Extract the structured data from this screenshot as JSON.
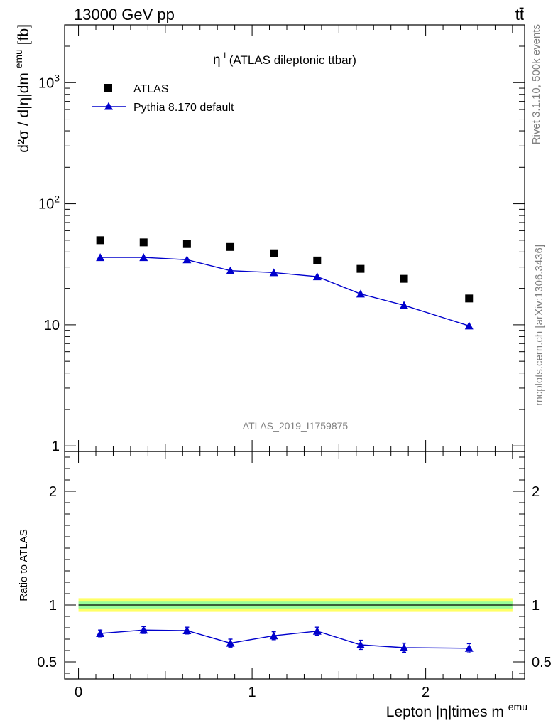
{
  "header": {
    "energy_label": "13000 GeV pp",
    "process_label": "tt̄"
  },
  "side_labels": {
    "rivet": "Rivet 3.1.10,  500k events",
    "mcplots": "mcplots.cern.ch [arXiv:1306.3436]"
  },
  "watermark": "ATLAS_2019_I1759875",
  "colors": {
    "data": "#000000",
    "mc": "#0000cc",
    "band_inner": "#99ff99",
    "band_outer": "#ffff66"
  },
  "chart_data": [
    {
      "type": "scatter",
      "panel": "main",
      "title_symbol": "η",
      "title_sup": "l",
      "title": " (ATLAS dileptonic ttbar)",
      "ylabel": "d²σ / d|η|dm",
      "ylabel_sup": "emu",
      "ylabel_unit": " [fb]",
      "yscale": "log",
      "ylim": [
        0.9,
        3000
      ],
      "xlim": [
        -0.08,
        2.57
      ],
      "ytick_labels": [
        {
          "value": 1,
          "label": "1"
        },
        {
          "value": 10,
          "label": "10"
        },
        {
          "value": 100,
          "label": "10",
          "sup": "2"
        },
        {
          "value": 1000,
          "label": "10",
          "sup": "3"
        }
      ],
      "legend": [
        {
          "name": "ATLAS",
          "marker": "square"
        },
        {
          "name": "Pythia 8.170 default",
          "marker": "triangle-line"
        }
      ],
      "series": [
        {
          "name": "ATLAS",
          "x": [
            0.125,
            0.375,
            0.625,
            0.875,
            1.125,
            1.375,
            1.625,
            1.875,
            2.25
          ],
          "values": [
            50,
            48,
            46.5,
            44,
            39,
            34,
            29,
            24,
            16.5
          ]
        },
        {
          "name": "Pythia 8.170 default",
          "x": [
            0.125,
            0.375,
            0.625,
            0.875,
            1.125,
            1.375,
            1.625,
            1.875,
            2.25
          ],
          "values": [
            36,
            36,
            34.5,
            28,
            27,
            25,
            18,
            14.5,
            9.8
          ]
        }
      ]
    },
    {
      "type": "line",
      "panel": "ratio",
      "ylabel": "Ratio to ATLAS",
      "xlabel": "Lepton |η|times m",
      "xlabel_sup": "emu",
      "ylim": [
        0.35,
        2.35
      ],
      "xlim": [
        -0.08,
        2.57
      ],
      "ytick_labels": [
        {
          "value": 0.5,
          "label": "0.5"
        },
        {
          "value": 1,
          "label": "1"
        },
        {
          "value": 2,
          "label": "2"
        }
      ],
      "xtick_labels": [
        {
          "value": 0,
          "label": "0"
        },
        {
          "value": 1,
          "label": "1"
        },
        {
          "value": 2,
          "label": "2"
        }
      ],
      "band": {
        "xmin": 0,
        "xmax": 2.5,
        "inner": [
          0.97,
          1.03
        ],
        "outer": [
          0.94,
          1.06
        ]
      },
      "reference": 1,
      "series": [
        {
          "name": "Pythia 8.170 default",
          "x": [
            0.125,
            0.375,
            0.625,
            0.875,
            1.125,
            1.375,
            1.625,
            1.875,
            2.25
          ],
          "values": [
            0.75,
            0.78,
            0.775,
            0.665,
            0.73,
            0.77,
            0.65,
            0.625,
            0.62
          ],
          "errors": [
            0.03,
            0.03,
            0.03,
            0.035,
            0.035,
            0.035,
            0.04,
            0.04,
            0.04
          ]
        }
      ]
    }
  ]
}
